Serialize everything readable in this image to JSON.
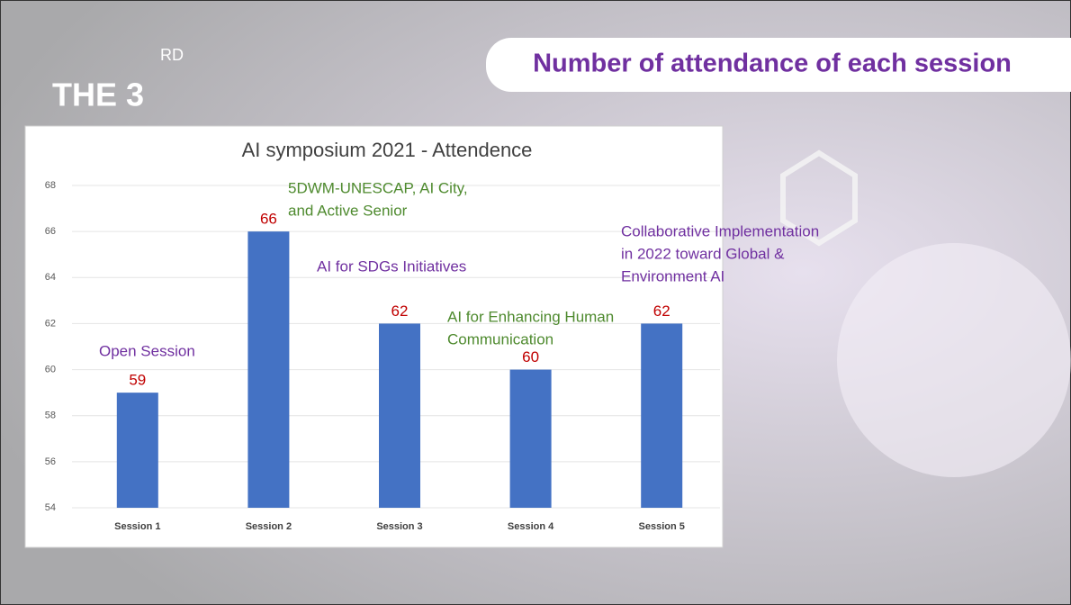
{
  "header": {
    "text": "THE 3",
    "superscript": "RD",
    "slide_title": "Number of attendance of each session"
  },
  "chart_data": {
    "type": "bar",
    "title": "AI symposium 2021 - Attendence",
    "categories": [
      "Session 1",
      "Session 2",
      "Session 3",
      "Session 4",
      "Session 5"
    ],
    "values": [
      59,
      66,
      62,
      60,
      62
    ],
    "color": "#4472c4",
    "value_label_color": "#c00000",
    "ylim": [
      54,
      68
    ],
    "yticks": [
      54,
      56,
      58,
      60,
      62,
      64,
      66,
      68
    ],
    "grid": true,
    "annotations": [
      {
        "lines": [
          "Open Session"
        ],
        "color": "#7030a0"
      },
      {
        "lines": [
          "5DWM-UNESCAP, AI City,",
          "and Active Senior"
        ],
        "color": "#4e8a2e"
      },
      {
        "lines": [
          "AI for SDGs Initiatives"
        ],
        "color": "#7030a0"
      },
      {
        "lines": [
          "AI for Enhancing Human",
          "Communication"
        ],
        "color": "#4e8a2e"
      },
      {
        "lines": [
          "Collaborative Implementation",
          "in 2022 toward Global &",
          "Environment AI"
        ],
        "color": "#7030a0"
      }
    ]
  }
}
